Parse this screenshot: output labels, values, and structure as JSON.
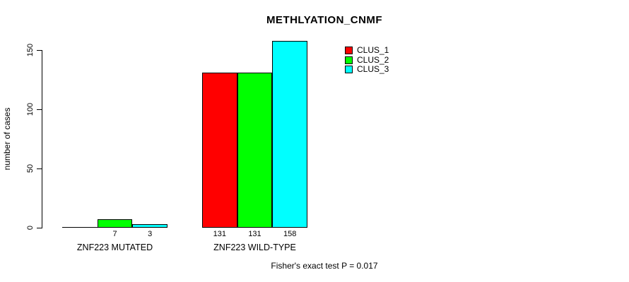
{
  "chart_data": {
    "type": "bar",
    "title": "METHLYATION_CNMF",
    "ylabel": "number of cases",
    "xlabel": "",
    "ylim": [
      0,
      150
    ],
    "yticks": [
      0,
      50,
      100,
      150
    ],
    "grid": false,
    "legend_position": "top-right",
    "categories": [
      "ZNF223 MUTATED",
      "ZNF223 WILD-TYPE"
    ],
    "series": [
      {
        "name": "CLUS_1",
        "color": "#ff0000",
        "values": [
          0,
          131
        ],
        "bar_labels": [
          "",
          "131"
        ]
      },
      {
        "name": "CLUS_2",
        "color": "#00ff00",
        "values": [
          7,
          131
        ],
        "bar_labels": [
          "7",
          "131"
        ]
      },
      {
        "name": "CLUS_3",
        "color": "#00ffff",
        "values": [
          3,
          158
        ],
        "bar_labels": [
          "3",
          "158"
        ]
      }
    ],
    "annotation": "Fisher's exact test P = 0.017"
  },
  "colors": {
    "background": "#ffffff",
    "axis": "#000000",
    "text": "#000000"
  }
}
